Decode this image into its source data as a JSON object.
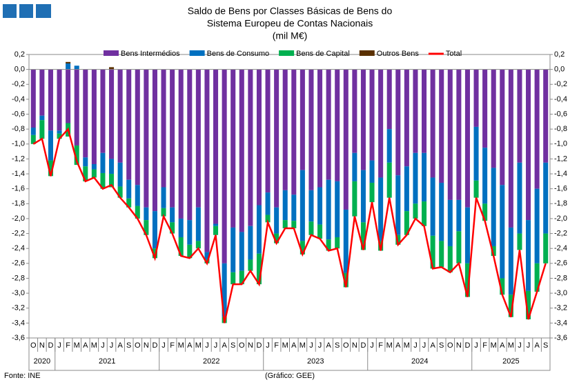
{
  "chart_data": {
    "type": "stacked-bar-line",
    "title": "Saldo de Bens por Classes Básicas de Bens do",
    "subtitle": "Sistema Europeu de Contas Nacionais",
    "unit": "(mil M€)",
    "source": "Fonte: INE",
    "credit": "(Gráfico: GEE)",
    "categories": [
      "O",
      "N",
      "D",
      "J",
      "F",
      "M",
      "A",
      "M",
      "J",
      "J",
      "A",
      "S",
      "O",
      "N",
      "D",
      "J",
      "F",
      "M",
      "A",
      "M",
      "J",
      "J",
      "A",
      "S",
      "O",
      "N",
      "D",
      "J",
      "F",
      "M",
      "A",
      "M",
      "J",
      "J",
      "A",
      "S",
      "O",
      "N",
      "D",
      "J",
      "F",
      "M",
      "A",
      "M",
      "J",
      "J",
      "A",
      "S",
      "O",
      "N",
      "D",
      "J",
      "F",
      "M",
      "A",
      "M",
      "J",
      "J",
      "A",
      "S"
    ],
    "years": [
      "2020",
      "2021",
      "2022",
      "2023",
      "2024",
      "2025"
    ],
    "series": [
      {
        "name": "Bens Intermédios",
        "color": "#7030a0",
        "values": [
          -0.78,
          -0.62,
          -0.82,
          -0.82,
          -0.72,
          -1.02,
          -1.18,
          -1.27,
          -1.12,
          -1.2,
          -1.25,
          -1.48,
          -1.55,
          -1.85,
          -1.9,
          -1.58,
          -1.85,
          -2.0,
          -2.02,
          -1.85,
          -2.45,
          -2.07,
          -2.6,
          -2.12,
          -2.18,
          -2.1,
          -1.82,
          -1.65,
          -1.85,
          -1.62,
          -1.68,
          -1.35,
          -1.62,
          -1.58,
          -1.48,
          -1.5,
          -1.88,
          -1.12,
          -1.35,
          -1.22,
          -1.45,
          -0.8,
          -1.42,
          -1.3,
          -1.12,
          -1.12,
          -1.45,
          -1.52,
          -1.75,
          -1.75,
          -1.85,
          -0.77,
          -1.05,
          -1.32,
          -1.55,
          -2.12,
          -1.25,
          -2.02,
          -1.6,
          -1.25
        ]
      },
      {
        "name": "Bens de Consumo",
        "color": "#0070c0",
        "values": [
          -0.1,
          -0.06,
          -0.4,
          -0.04,
          0.08,
          0.05,
          -0.12,
          -0.07,
          -0.27,
          -0.2,
          -0.32,
          -0.25,
          -0.28,
          -0.17,
          -0.5,
          -0.28,
          -0.2,
          -0.25,
          -0.33,
          -0.45,
          -0.1,
          -0.03,
          -0.72,
          -0.6,
          -0.52,
          -0.45,
          -0.65,
          -0.3,
          -0.35,
          -0.4,
          -0.35,
          -0.95,
          -0.42,
          -0.5,
          -0.8,
          -0.75,
          -0.85,
          -0.38,
          -0.7,
          -0.3,
          -0.85,
          -0.45,
          -0.8,
          -0.6,
          -0.68,
          -0.65,
          -0.78,
          -0.78,
          -0.62,
          -0.42,
          -0.75,
          -0.72,
          -0.75,
          -1.05,
          -1.25,
          -0.9,
          -0.95,
          -0.95,
          -1.0,
          -0.95
        ]
      },
      {
        "name": "Bens de Capital",
        "color": "#00b050",
        "values": [
          -0.12,
          -0.25,
          -0.21,
          -0.07,
          -0.18,
          -0.26,
          -0.2,
          -0.11,
          -0.21,
          -0.18,
          -0.15,
          -0.12,
          -0.17,
          -0.2,
          -0.13,
          -0.11,
          -0.15,
          -0.25,
          -0.18,
          -0.1,
          -0.05,
          -0.12,
          -0.08,
          -0.16,
          -0.18,
          -0.15,
          -0.41,
          -0.1,
          -0.13,
          -0.11,
          -0.1,
          -0.18,
          -0.18,
          -0.19,
          -0.15,
          -0.15,
          -0.19,
          -0.47,
          -0.37,
          -0.26,
          -0.13,
          -0.47,
          -0.13,
          -0.32,
          -0.2,
          -0.33,
          -0.44,
          -0.35,
          -0.35,
          -0.43,
          -0.45,
          -0.23,
          -0.23,
          -0.13,
          -0.22,
          -0.3,
          -0.22,
          -0.38,
          -0.38,
          -0.4
        ]
      },
      {
        "name": "Outros Bens",
        "color": "#5a3000",
        "values": [
          0,
          0,
          0,
          0,
          0.02,
          0,
          0,
          0,
          0,
          0.03,
          0,
          0,
          0,
          0,
          0,
          0,
          0,
          0,
          0,
          0,
          0,
          0,
          0,
          0,
          0,
          0,
          0,
          0,
          0,
          0,
          0,
          0,
          0,
          0,
          0,
          0,
          0,
          0,
          0,
          0,
          0,
          0,
          0,
          0,
          0,
          0,
          0,
          0,
          0,
          0,
          0,
          0,
          0,
          0,
          0,
          0,
          0,
          0,
          0,
          0
        ]
      },
      {
        "name": "Total",
        "color": "#ff0000",
        "line": true,
        "values": [
          -1.0,
          -0.93,
          -1.43,
          -0.93,
          -0.8,
          -1.23,
          -1.5,
          -1.45,
          -1.6,
          -1.55,
          -1.72,
          -1.85,
          -2.0,
          -2.22,
          -2.53,
          -1.97,
          -2.2,
          -2.5,
          -2.53,
          -2.4,
          -2.6,
          -2.22,
          -3.4,
          -2.88,
          -2.88,
          -2.7,
          -2.88,
          -2.05,
          -2.33,
          -2.13,
          -2.13,
          -2.48,
          -2.22,
          -2.27,
          -2.43,
          -2.4,
          -2.92,
          -1.97,
          -2.42,
          -1.78,
          -2.43,
          -1.72,
          -2.35,
          -2.22,
          -2.0,
          -2.1,
          -2.67,
          -2.65,
          -2.72,
          -2.6,
          -3.05,
          -1.72,
          -2.03,
          -2.5,
          -3.02,
          -3.32,
          -2.42,
          -3.35,
          -2.98,
          -2.6
        ]
      }
    ],
    "ylim": [
      -3.6,
      0.2
    ],
    "yticks": [
      {
        "value": 0.2,
        "label": "0,2"
      },
      {
        "value": 0,
        "label": "0,0"
      },
      {
        "value": -0.2,
        "label": "-0,2"
      },
      {
        "value": -0.4,
        "label": "-0,4"
      },
      {
        "value": -0.6,
        "label": "-0,6"
      },
      {
        "value": -0.8,
        "label": "-0,8"
      },
      {
        "value": -1.0,
        "label": "-1,0"
      },
      {
        "value": -1.2,
        "label": "-1,2"
      },
      {
        "value": -1.4,
        "label": "-1,4"
      },
      {
        "value": -1.6,
        "label": "-1,6"
      },
      {
        "value": -1.8,
        "label": "-1,8"
      },
      {
        "value": -2.0,
        "label": "-2,0"
      },
      {
        "value": -2.2,
        "label": "-2,2"
      },
      {
        "value": -2.4,
        "label": "-2,4"
      },
      {
        "value": -2.6,
        "label": "-2,6"
      },
      {
        "value": -2.8,
        "label": "-2,8"
      },
      {
        "value": -3.0,
        "label": "-3,0"
      },
      {
        "value": -3.2,
        "label": "-3,2"
      },
      {
        "value": -3.4,
        "label": "-3,4"
      },
      {
        "value": -3.6,
        "label": "-3,6"
      }
    ],
    "y2lim": [
      -3.6,
      0.2
    ],
    "y2ticks": [
      {
        "value": 0.2,
        "label": "0,2"
      },
      {
        "value": 0,
        "label": "0,0"
      },
      {
        "value": -0.2,
        "label": "-0,2"
      },
      {
        "value": -0.4,
        "label": "-0,4"
      },
      {
        "value": -0.6,
        "label": "-0,6"
      },
      {
        "value": -0.8,
        "label": "-0,8"
      },
      {
        "value": -1.0,
        "label": "-1,0"
      },
      {
        "value": -1.2,
        "label": "-1,2"
      },
      {
        "value": -1.4,
        "label": "-1,4"
      },
      {
        "value": -1.6,
        "label": "-1,6"
      },
      {
        "value": -1.8,
        "label": "-1,8"
      },
      {
        "value": -2.0,
        "label": "-2,0"
      },
      {
        "value": -2.2,
        "label": "-2,2"
      },
      {
        "value": -2.4,
        "label": "-2,4"
      },
      {
        "value": -2.6,
        "label": "-2,6"
      },
      {
        "value": -2.8,
        "label": "-2,8"
      },
      {
        "value": -3.0,
        "label": "-3,0"
      },
      {
        "value": -3.2,
        "label": "-3,2"
      },
      {
        "value": -3.4,
        "label": "-3,4"
      },
      {
        "value": -3.6,
        "label": "-3,6"
      }
    ]
  }
}
